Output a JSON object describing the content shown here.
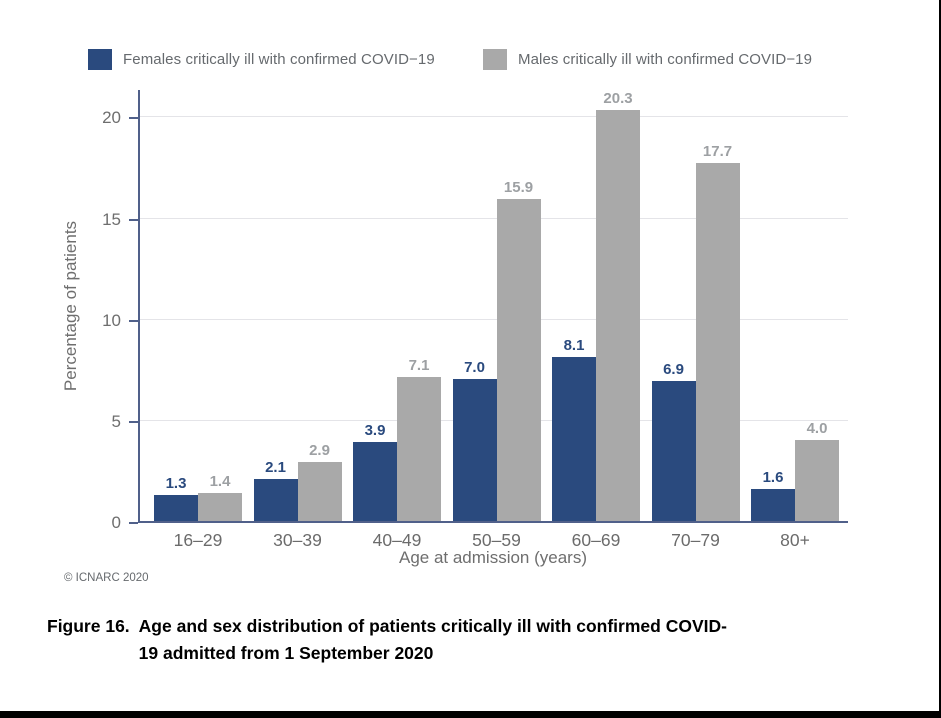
{
  "legend": {
    "female_label": "Females critically ill with confirmed COVID−19",
    "male_label": "Males critically ill with confirmed COVID−19"
  },
  "chart_data": {
    "type": "bar",
    "title": "",
    "categories": [
      "16–29",
      "30–39",
      "40–49",
      "50–59",
      "60–69",
      "70–79",
      "80+"
    ],
    "series": [
      {
        "name": "Females critically ill with confirmed COVID−19",
        "color": "#2A4A7E",
        "label_color": "#2A4A7E",
        "values": [
          1.3,
          2.1,
          3.9,
          7.0,
          8.1,
          6.9,
          1.6
        ]
      },
      {
        "name": "Males critically ill with confirmed COVID−19",
        "color": "#A9A9A9",
        "label_color": "#9DA0A3",
        "values": [
          1.4,
          2.9,
          7.1,
          15.9,
          20.3,
          17.7,
          4.0
        ]
      }
    ],
    "xlabel": "Age at admission (years)",
    "ylabel": "Percentage of patients",
    "ylim": [
      0,
      21.4
    ],
    "yticks": [
      0,
      5,
      10,
      15,
      20
    ],
    "gridlines": [
      5,
      10,
      15,
      20
    ],
    "grid": "horizontal",
    "legend_position": "top",
    "value_labels": true
  },
  "footnote": "© ICNARC 2020",
  "caption": {
    "label": "Figure 16.",
    "line1": "Age and sex distribution of patients critically ill with confirmed COVID-",
    "line2": "19 admitted from 1 September 2020"
  },
  "colors": {
    "female": "#2A4A7E",
    "male": "#A9A9A9",
    "axis": "#50608A",
    "gridline": "#E4E4E8",
    "text_gray": "#6E6E6E"
  }
}
